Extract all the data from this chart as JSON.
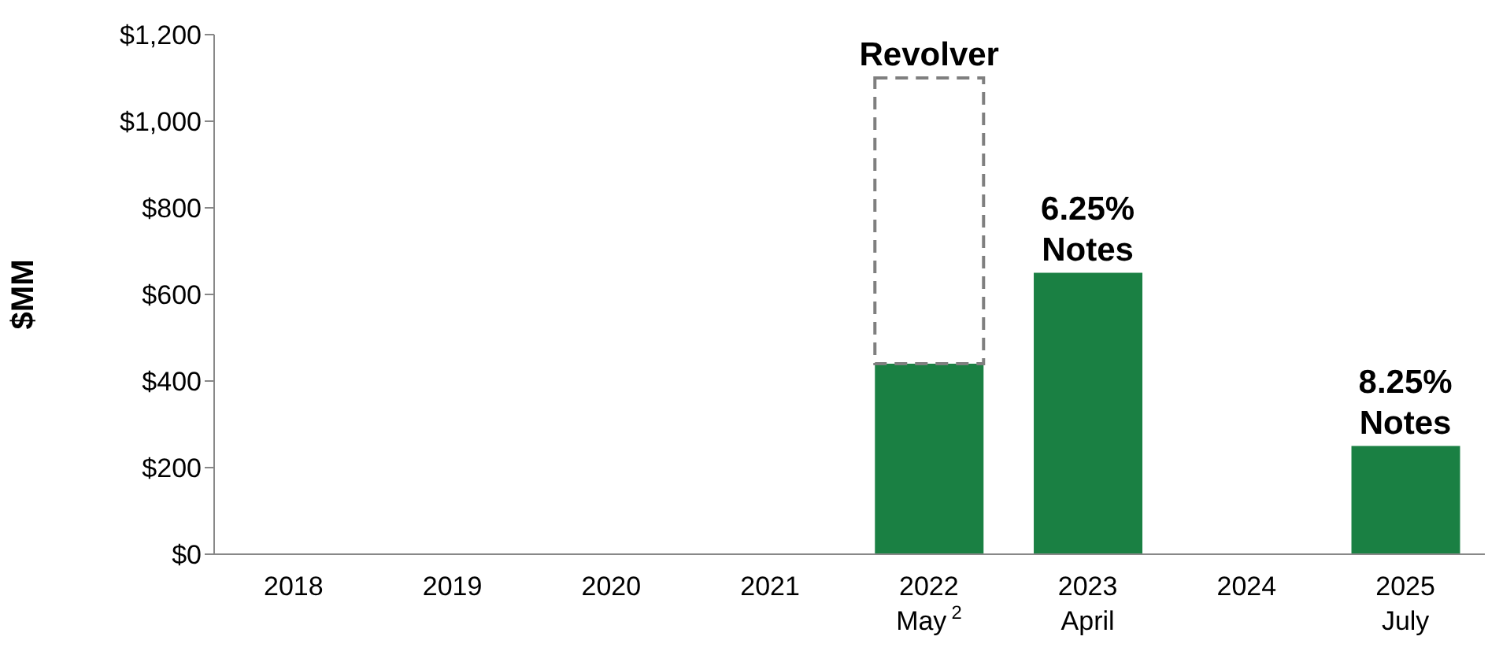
{
  "chart_data": {
    "type": "bar",
    "stacked": true,
    "ylabel": "$MM",
    "categories": [
      "2018",
      "2019",
      "2020",
      "2021",
      "2022\nMay$^{2}$",
      "2023\nApril",
      "2024",
      "2025\nJuly"
    ],
    "series": [
      {
        "color": "#1a8043",
        "values": [
          null,
          null,
          null,
          null,
          440,
          650,
          null,
          250
        ]
      },
      {
        "name": "Revolver",
        "color": "#7f7f7f",
        "line_style": "dashed",
        "values": [
          null,
          null,
          null,
          null,
          660,
          null,
          null,
          null
        ]
      }
    ],
    "ylim": [
      0,
      1200
    ],
    "yticks": [
      {
        "value": 0,
        "label": "$0"
      },
      {
        "value": 200,
        "label": "$200"
      },
      {
        "value": 400,
        "label": "$400"
      },
      {
        "value": 600,
        "label": "$600"
      },
      {
        "value": 800,
        "label": "$800"
      },
      {
        "value": 1000,
        "label": "$1,000"
      },
      {
        "value": 1200,
        "label": "$1,200"
      }
    ],
    "annotations": [
      {
        "text": "6.25%\nNotes",
        "x": "2023\nApril",
        "y": 650
      },
      {
        "text": "8.25%\nNotes",
        "x": "2025\nJuly",
        "y": 250
      }
    ]
  }
}
